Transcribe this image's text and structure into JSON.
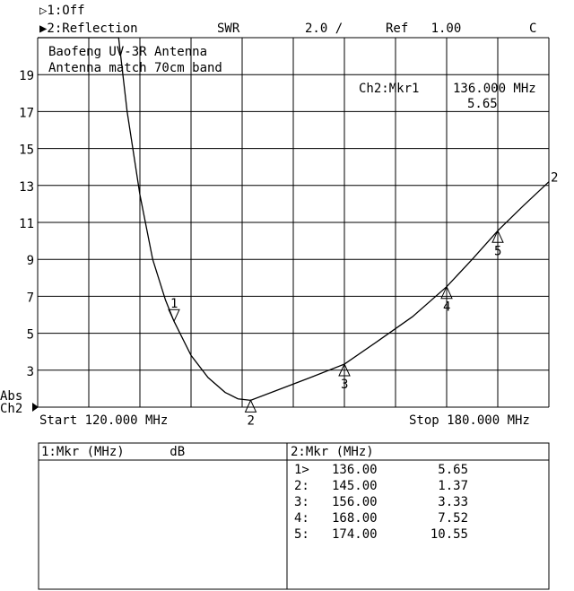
{
  "header": {
    "ch1": "▷1:Off",
    "ch2": "▶2:Reflection",
    "format": "SWR",
    "scale": "2.0 /",
    "ref": "Ref   1.00",
    "flag": "C"
  },
  "annotation": {
    "line1": "Baofeng UV-3R Antenna",
    "line2": "Antenna match 70cm band",
    "active_marker_label": "Ch2:Mkr1",
    "active_marker_freq": "136.000 MHz",
    "active_marker_value": "5.65"
  },
  "side": {
    "abs": "Abs",
    "ch": "Ch2"
  },
  "footer": {
    "start": "Start 120.000 MHz",
    "stop": "Stop 180.000 MHz"
  },
  "table": {
    "left_header": "1:Mkr (MHz)      dB",
    "right_header": "2:Mkr (MHz)",
    "rows": [
      {
        "id": "1>",
        "freq": "136.00",
        "value": "5.65"
      },
      {
        "id": "2:",
        "freq": "145.00",
        "value": "1.37"
      },
      {
        "id": "3:",
        "freq": "156.00",
        "value": "3.33"
      },
      {
        "id": "4:",
        "freq": "168.00",
        "value": "7.52"
      },
      {
        "id": "5:",
        "freq": "174.00",
        "value": "10.55"
      }
    ]
  },
  "chart_data": {
    "type": "line",
    "xlim": [
      120,
      180
    ],
    "ylim": [
      1,
      21
    ],
    "x_unit": "MHz",
    "yticks": [
      3,
      5,
      7,
      9,
      11,
      13,
      15,
      17,
      19
    ],
    "grid": true,
    "trace_label": "2",
    "series": [
      {
        "x": [
          129.5,
          130.5,
          132,
          133.5,
          135,
          136,
          138,
          140,
          142,
          143.5,
          145,
          148,
          152,
          156,
          160,
          164,
          168,
          171,
          174,
          177,
          180
        ],
        "y": [
          21,
          17,
          12.5,
          9,
          6.8,
          5.65,
          3.8,
          2.6,
          1.8,
          1.45,
          1.37,
          1.9,
          2.6,
          3.33,
          4.6,
          5.9,
          7.52,
          9,
          10.55,
          11.9,
          13.2
        ]
      }
    ],
    "markers": [
      {
        "label": "1",
        "x": 136,
        "y": 5.65,
        "active": true
      },
      {
        "label": "2",
        "x": 145,
        "y": 1.37
      },
      {
        "label": "3",
        "x": 156,
        "y": 3.33
      },
      {
        "label": "4",
        "x": 168,
        "y": 7.52
      },
      {
        "label": "5",
        "x": 174,
        "y": 10.55
      }
    ]
  }
}
